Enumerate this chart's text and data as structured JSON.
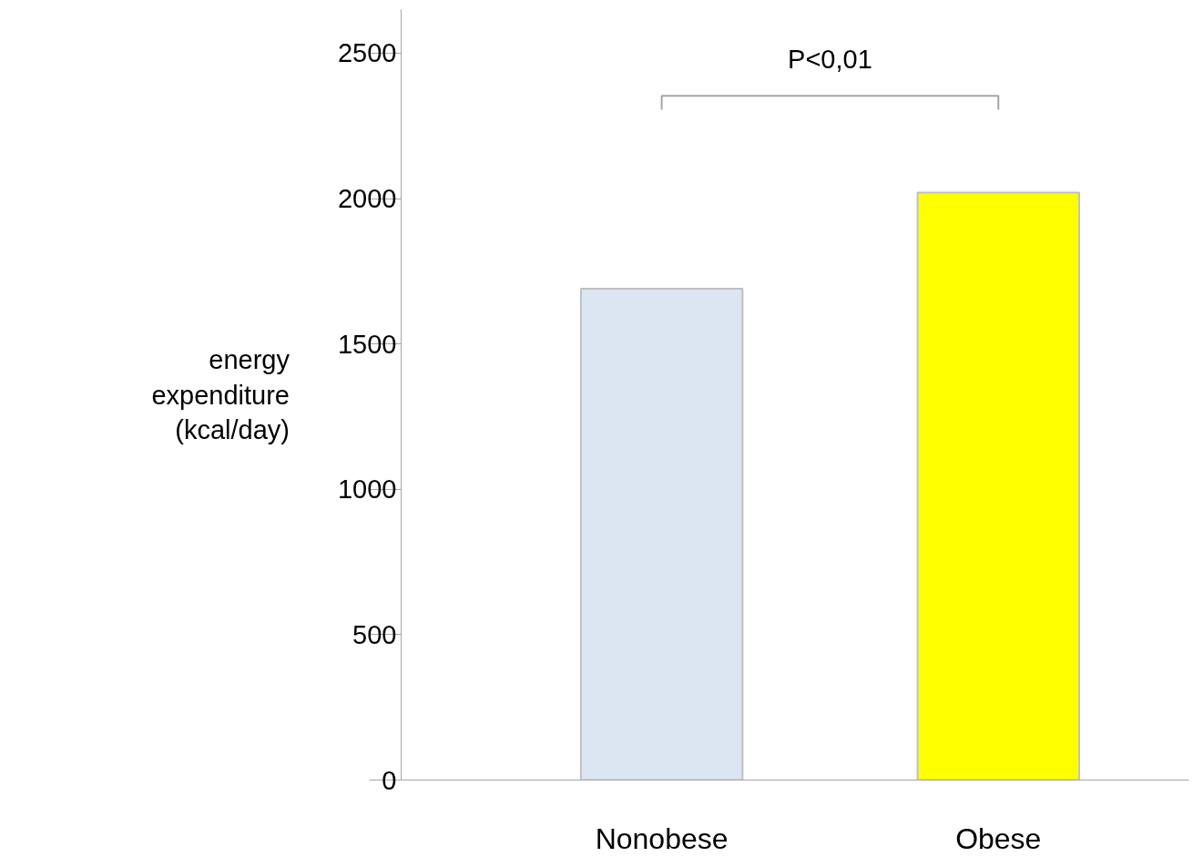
{
  "chart_data": {
    "type": "bar",
    "ylabel": "energy expenditure (kcal/day)",
    "categories": [
      "Nonobese",
      "Obese"
    ],
    "values": [
      1690,
      2020
    ],
    "colors": [
      "#dce6f2",
      "#ffff00"
    ],
    "ylim": [
      0,
      2650
    ],
    "yticks": [
      0,
      500,
      1000,
      1500,
      2000,
      2500
    ],
    "grid": false,
    "annotations": [
      "P<0,01"
    ]
  }
}
